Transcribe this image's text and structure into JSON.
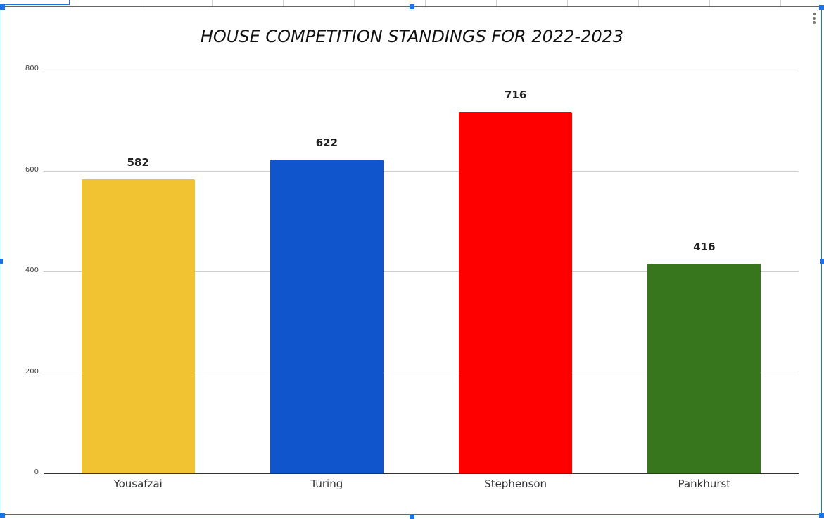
{
  "chart_data": {
    "type": "bar",
    "title": "HOUSE COMPETITION STANDINGS FOR 2022-2023",
    "xlabel": "",
    "ylabel": "",
    "categories": [
      "Yousafzai",
      "Turing",
      "Stephenson",
      "Pankhurst"
    ],
    "values": [
      582,
      622,
      716,
      416
    ],
    "colors": [
      "#f1c232",
      "#1155cc",
      "#ff0000",
      "#38761d"
    ],
    "data_labels": [
      "582",
      "622",
      "716",
      "416"
    ],
    "ylim": [
      0,
      800
    ],
    "yticks": [
      0,
      200,
      400,
      600,
      800
    ],
    "ytick_labels": [
      "0",
      "200",
      "400",
      "600",
      "800"
    ],
    "grid": true,
    "legend": "none"
  },
  "ui": {
    "menu_icon": "more-vert-icon",
    "selection_color": "#1a73e8"
  }
}
